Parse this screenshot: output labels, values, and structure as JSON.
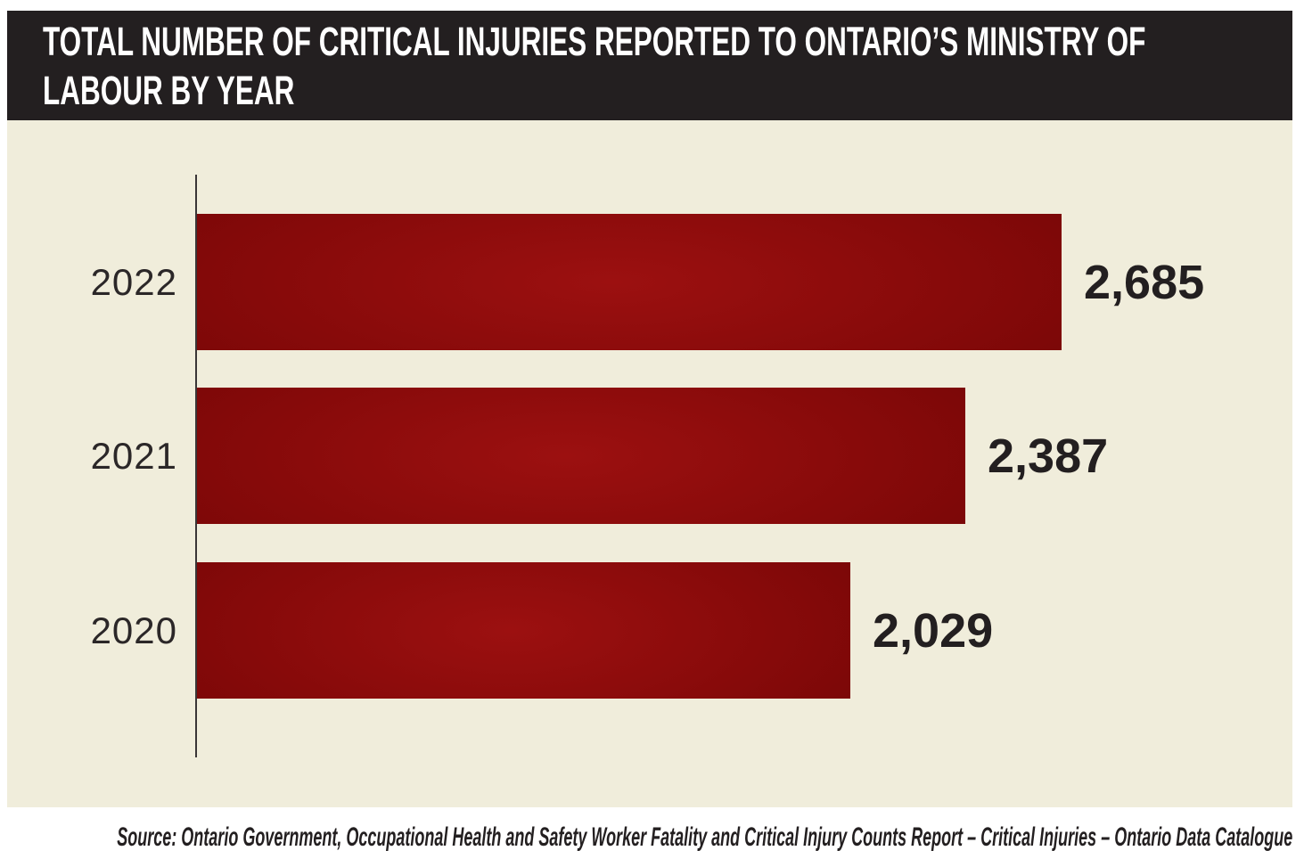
{
  "header": {
    "title_line1": "TOTAL NUMBER OF CRITICAL INJURIES REPORTED TO ONTARIO’S MINISTRY OF",
    "title_line2": "LABOUR BY YEAR"
  },
  "chart_data": {
    "type": "bar",
    "orientation": "horizontal",
    "title": "TOTAL NUMBER OF CRITICAL INJURIES REPORTED TO ONTARIO’S MINISTRY OF LABOUR BY YEAR",
    "categories": [
      "2022",
      "2021",
      "2020"
    ],
    "values": [
      2685,
      2387,
      2029
    ],
    "value_labels": [
      "2,685",
      "2,387",
      "2,029"
    ],
    "xlabel": "",
    "ylabel": "",
    "xlim_estimated": [
      0,
      3400
    ],
    "grid": false,
    "legend": "none",
    "value_labels_position": "right-of-bar"
  },
  "source": {
    "text": "Source: Ontario Government, Occupational Health and Safety Worker Fatality and Critical Injury Counts Report – Critical Injuries – Ontario Data Catalogue"
  },
  "colors": {
    "page_bg": "#ffffff",
    "header_bg": "#231f20",
    "header_text": "#ffffff",
    "plot_bg": "#f0eddb",
    "axis_color": "#3a3637",
    "label_color": "#2b2728",
    "value_color": "#231f20",
    "source_color": "#231f20",
    "bar_center": "#9c1010",
    "bar_mid": "#830909",
    "bar_edge": "#5f0303"
  }
}
